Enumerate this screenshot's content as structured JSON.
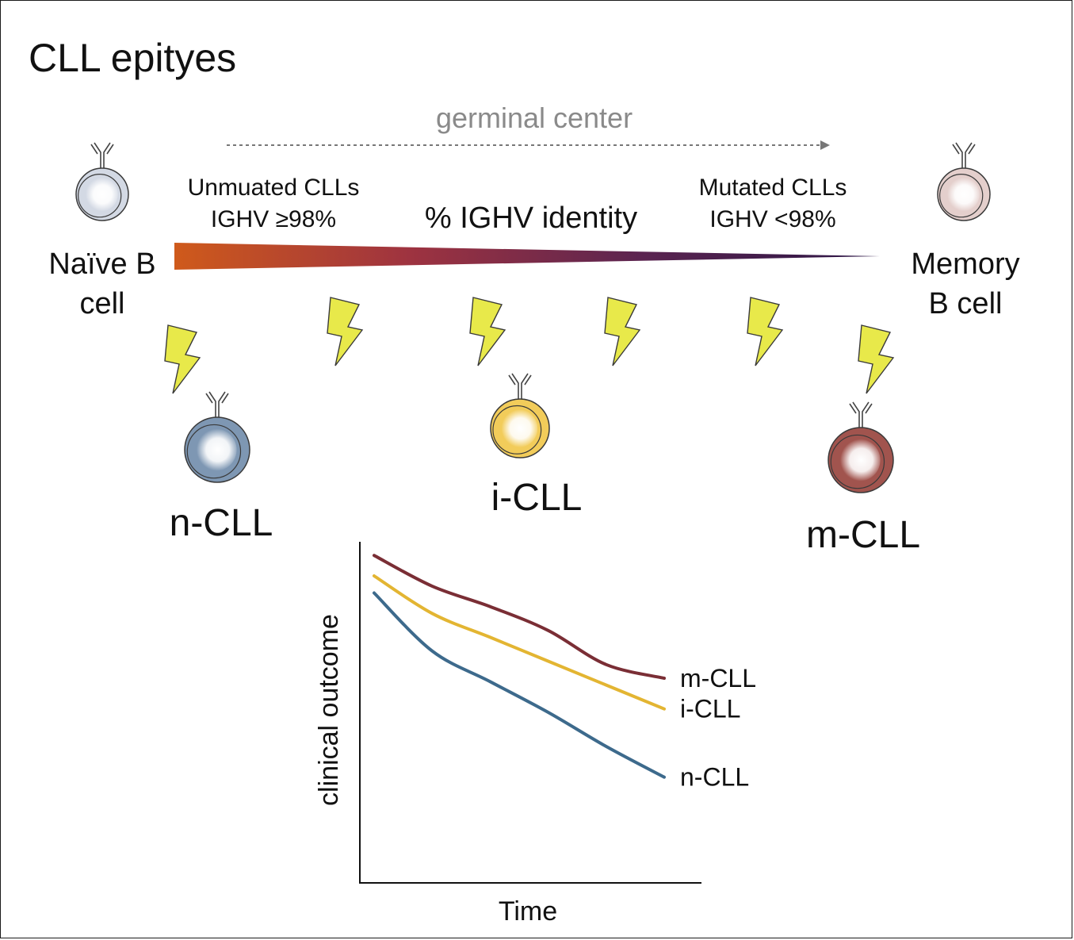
{
  "title": "CLL epityes",
  "germinal_center_label": "germinal center",
  "identity_axis": {
    "label": "% IGHV identity",
    "left_label_line1": "Unmuated CLLs",
    "left_label_line2": "IGHV ≥98%",
    "right_label_line1": "Mutated CLLs",
    "right_label_line2": "IGHV <98%",
    "gradient_colors": [
      "#cf5a1b",
      "#9e3340",
      "#5a2450",
      "#2b1545"
    ]
  },
  "naive_cell": {
    "line1": "Naïve B",
    "line2": "cell",
    "fill": "#d3d9e4"
  },
  "memory_cell": {
    "line1": "Memory",
    "line2": "B cell",
    "fill": "#e4cfcc"
  },
  "subtypes": [
    {
      "label": "n-CLL",
      "fill": "#7e97b3"
    },
    {
      "label": "i-CLL",
      "fill": "#f2cc5a"
    },
    {
      "label": "m-CLL",
      "fill": "#a1544e"
    }
  ],
  "lightning_color": "#e8e94a",
  "chart_data": {
    "type": "line",
    "xlabel": "Time",
    "ylabel": "clinical outcome",
    "series": [
      {
        "name": "m-CLL",
        "color": "#7a2e35",
        "x": [
          0,
          0.2,
          0.4,
          0.6,
          0.8,
          1.0
        ],
        "y": [
          0.96,
          0.87,
          0.81,
          0.74,
          0.64,
          0.6
        ]
      },
      {
        "name": "i-CLL",
        "color": "#e3b532",
        "x": [
          0,
          0.2,
          0.4,
          0.6,
          0.8,
          1.0
        ],
        "y": [
          0.9,
          0.79,
          0.72,
          0.65,
          0.58,
          0.51
        ]
      },
      {
        "name": "n-CLL",
        "color": "#3d6a8c",
        "x": [
          0,
          0.2,
          0.4,
          0.6,
          0.8,
          1.0
        ],
        "y": [
          0.85,
          0.68,
          0.59,
          0.5,
          0.4,
          0.31
        ]
      }
    ]
  }
}
